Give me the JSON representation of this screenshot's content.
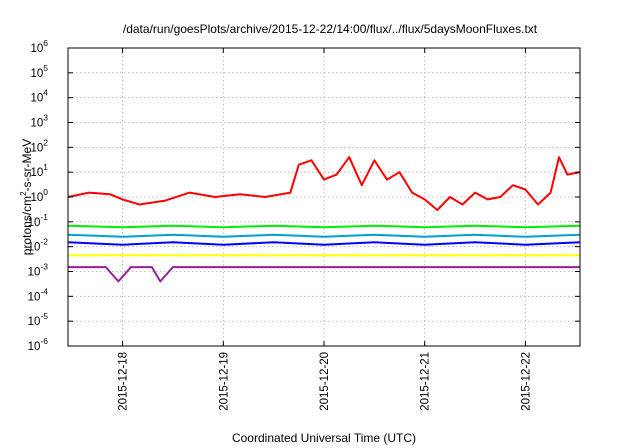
{
  "chart_data": {
    "type": "line",
    "title": "/data/run/goesPlots/archive/2015-12-22/14:00/flux/../flux/5daysMoonFluxes.txt",
    "xlabel": "Coordinated Universal Time (UTC)",
    "ylabel": {
      "prefix": "protons/cm",
      "sup": "2",
      "suffix": "-s-sr-MeV"
    },
    "y_scale": "log",
    "ylim_exponents": [
      -6,
      6
    ],
    "y_tick_exponents": [
      -6,
      -5,
      -4,
      -3,
      -2,
      -1,
      0,
      1,
      2,
      3,
      4,
      5,
      6
    ],
    "xlim": [
      "2015-12-17 11:00",
      "2015-12-22 13:00"
    ],
    "x_ticks": [
      "2015-12-18",
      "2015-12-19",
      "2015-12-20",
      "2015-12-21",
      "2015-12-22"
    ],
    "grid": true,
    "legend": "none",
    "series": [
      {
        "color": "#ff0000",
        "x": [
          "2015-12-17 11:00",
          "2015-12-17 16:00",
          "2015-12-17 21:00",
          "2015-12-18 00:00",
          "2015-12-18 04:00",
          "2015-12-18 10:00",
          "2015-12-18 16:00",
          "2015-12-18 22:00",
          "2015-12-19 04:00",
          "2015-12-19 10:00",
          "2015-12-19 16:00",
          "2015-12-19 18:00",
          "2015-12-19 21:00",
          "2015-12-20 00:00",
          "2015-12-20 03:00",
          "2015-12-20 06:00",
          "2015-12-20 09:00",
          "2015-12-20 12:00",
          "2015-12-20 15:00",
          "2015-12-20 18:00",
          "2015-12-20 21:00",
          "2015-12-21 00:00",
          "2015-12-21 03:00",
          "2015-12-21 06:00",
          "2015-12-21 09:00",
          "2015-12-21 12:00",
          "2015-12-21 15:00",
          "2015-12-21 18:00",
          "2015-12-21 21:00",
          "2015-12-22 00:00",
          "2015-12-22 03:00",
          "2015-12-22 06:00",
          "2015-12-22 08:00",
          "2015-12-22 10:00",
          "2015-12-22 13:00"
        ],
        "y": [
          1.0,
          1.5,
          1.3,
          0.8,
          0.5,
          0.7,
          1.5,
          1.0,
          1.3,
          1.0,
          1.5,
          20,
          30,
          5,
          8,
          40,
          3,
          30,
          5,
          10,
          1.5,
          0.8,
          0.3,
          1.0,
          0.5,
          1.5,
          0.8,
          1.0,
          3,
          2,
          0.5,
          1.5,
          40,
          8,
          10
        ]
      },
      {
        "color": "#00ee00",
        "x": [
          "2015-12-17 11:00",
          "2015-12-18 00:00",
          "2015-12-18 12:00",
          "2015-12-19 00:00",
          "2015-12-19 12:00",
          "2015-12-20 00:00",
          "2015-12-20 12:00",
          "2015-12-21 00:00",
          "2015-12-21 12:00",
          "2015-12-22 00:00",
          "2015-12-22 13:00"
        ],
        "y": [
          0.07,
          0.06,
          0.07,
          0.06,
          0.07,
          0.06,
          0.07,
          0.06,
          0.07,
          0.06,
          0.07
        ]
      },
      {
        "color": "#00a0d0",
        "x": [
          "2015-12-17 11:00",
          "2015-12-18 00:00",
          "2015-12-18 12:00",
          "2015-12-19 00:00",
          "2015-12-19 12:00",
          "2015-12-20 00:00",
          "2015-12-20 12:00",
          "2015-12-21 00:00",
          "2015-12-21 12:00",
          "2015-12-22 00:00",
          "2015-12-22 13:00"
        ],
        "y": [
          0.03,
          0.025,
          0.03,
          0.025,
          0.03,
          0.025,
          0.03,
          0.025,
          0.03,
          0.025,
          0.03
        ]
      },
      {
        "color": "#0000ff",
        "x": [
          "2015-12-17 11:00",
          "2015-12-18 00:00",
          "2015-12-18 12:00",
          "2015-12-19 00:00",
          "2015-12-19 12:00",
          "2015-12-20 00:00",
          "2015-12-20 12:00",
          "2015-12-21 00:00",
          "2015-12-21 12:00",
          "2015-12-22 00:00",
          "2015-12-22 13:00"
        ],
        "y": [
          0.015,
          0.012,
          0.015,
          0.012,
          0.015,
          0.012,
          0.015,
          0.012,
          0.015,
          0.012,
          0.015
        ]
      },
      {
        "color": "#ffff00",
        "x": [
          "2015-12-17 11:00",
          "2015-12-22 13:00"
        ],
        "y": [
          0.0045,
          0.0045
        ]
      },
      {
        "color": "#9a1e9a",
        "x": [
          "2015-12-17 11:00",
          "2015-12-17 20:00",
          "2015-12-17 23:00",
          "2015-12-18 02:00",
          "2015-12-18 07:00",
          "2015-12-18 09:00",
          "2015-12-18 12:00",
          "2015-12-19 00:00",
          "2015-12-20 00:00",
          "2015-12-21 00:00",
          "2015-12-22 00:00",
          "2015-12-22 13:00"
        ],
        "y": [
          0.0015,
          0.0015,
          0.0004,
          0.0015,
          0.0015,
          0.0004,
          0.0015,
          0.0015,
          0.0015,
          0.0015,
          0.0015,
          0.0015
        ]
      }
    ]
  }
}
